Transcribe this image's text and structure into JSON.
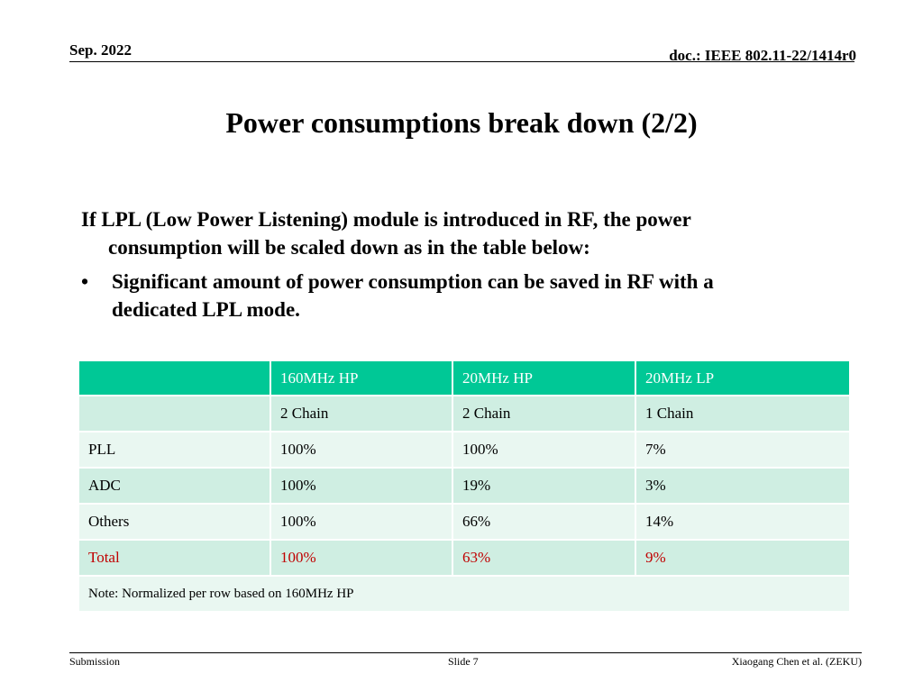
{
  "header": {
    "date": "Sep. 2022",
    "doc": "doc.: IEEE 802.11-22/1414r0"
  },
  "title": "Power consumptions break down (2/2)",
  "body": {
    "paragraph": "If LPL (Low Power Listening) module is introduced in RF, the power consumption will be scaled down as in the table below:",
    "bullet_symbol": "•",
    "bullet": "Significant amount of power consumption can be saved in RF with a dedicated LPL mode."
  },
  "table": {
    "headers": [
      "",
      "160MHz HP",
      "20MHz HP",
      "20MHz LP"
    ],
    "rows": [
      [
        "",
        "2 Chain",
        "2 Chain",
        "1 Chain"
      ],
      [
        "PLL",
        "100%",
        "100%",
        "7%"
      ],
      [
        "ADC",
        "100%",
        "19%",
        "3%"
      ],
      [
        "Others",
        "100%",
        "66%",
        "14%"
      ],
      [
        "Total",
        "100%",
        "63%",
        "9%"
      ]
    ],
    "note": "Note: Normalized per row based on 160MHz HP",
    "colors": {
      "header_bg": "#00c896",
      "row_dark": "#cfeee2",
      "row_light": "#e9f7f1",
      "total_text": "#c00000"
    }
  },
  "footer": {
    "left": "Submission",
    "center": "Slide 7",
    "right": "Xiaogang Chen et al. (ZEKU)"
  }
}
